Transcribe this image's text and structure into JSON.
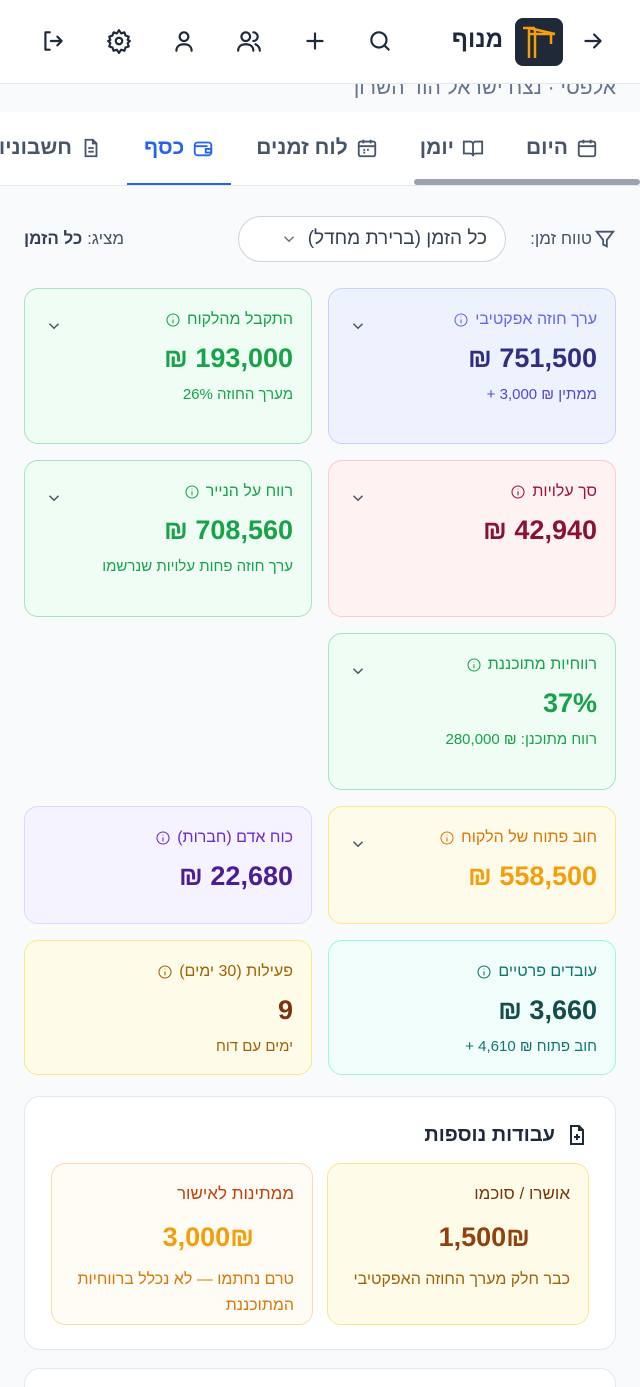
{
  "header": {
    "app_name": "מנוף",
    "subtitle": "אלפסי · נצח ישראל הוד השרון"
  },
  "tabs": [
    "היום",
    "יומן",
    "לוח זמנים",
    "כסף",
    "חשבוניות"
  ],
  "filter": {
    "label": "טווח זמן:",
    "range": "כל הזמן (ברירת מחדל)",
    "showing_label": "מציג:",
    "showing": "כל הזמן"
  },
  "cards": [
    {
      "title": "ערך חוזה אפקטיבי",
      "value": "₪ 751,500",
      "note": "+ 3,000 ₪ ממתין"
    },
    {
      "title": "התקבל מהלקוח",
      "value": "₪ 193,000",
      "note": "26% מערך החוזה"
    },
    {
      "title": "סך עלויות",
      "value": "₪ 42,940"
    },
    {
      "title": "רווח על הנייר",
      "value": "₪ 708,560",
      "note": "ערך חוזה פחות עלויות שנרשמו"
    },
    {
      "title": "רווחיות מתוכננת",
      "value": "37%",
      "note": "רווח מתוכנן: ₪ 280,000"
    },
    {
      "title": "חוב פתוח של הלקוח",
      "value": "₪ 558,500"
    },
    {
      "title": "כוח אדם (חברות)",
      "value": "₪ 22,680"
    },
    {
      "title": "עובדים פרטיים",
      "value": "₪ 3,660",
      "note": "+ 4,610 ₪ חוב פתוח"
    },
    {
      "title": "פעילות (30 ימים)",
      "value": "9",
      "note": "ימים עם דוח"
    }
  ],
  "extra_work": {
    "title": "עבודות נוספות",
    "items": [
      {
        "title": "אושרו / סוכמו",
        "value": "1,500₪",
        "note": "כבר חלק מערך החוזה האפקטיבי"
      },
      {
        "title": "ממתינות לאישור",
        "value": "3,000₪",
        "note": "טרם נחתמו — לא נכלל ברווחיות המתוכננת"
      }
    ]
  }
}
